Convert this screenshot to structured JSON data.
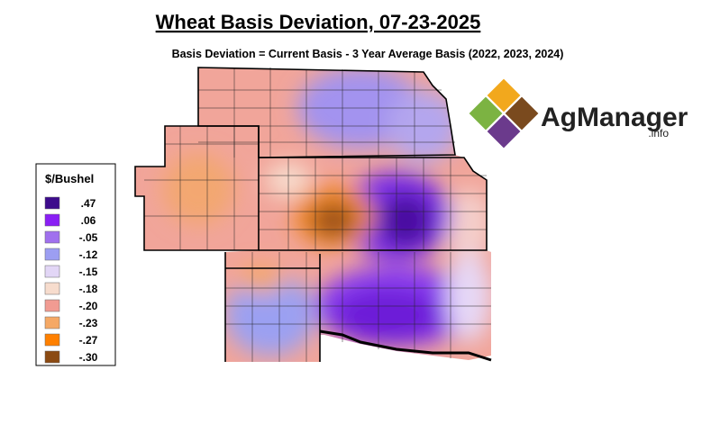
{
  "header": {
    "title": "Wheat Basis Deviation, 07-23-2025",
    "subtitle": "Basis Deviation = Current Basis - 3 Year Average Basis (2022, 2023, 2024)"
  },
  "legend": {
    "title": "$/Bushel",
    "items": [
      {
        "label": ".47",
        "color": "#3d0b8c"
      },
      {
        "label": ".06",
        "color": "#8a1ff5"
      },
      {
        "label": "-.05",
        "color": "#a070ee"
      },
      {
        "label": "-.12",
        "color": "#9c9ef2"
      },
      {
        "label": "-.15",
        "color": "#e2d6f6"
      },
      {
        "label": "-.18",
        "color": "#f7dccd"
      },
      {
        "label": "-.20",
        "color": "#f19b92"
      },
      {
        "label": "-.23",
        "color": "#f5a865"
      },
      {
        "label": "-.27",
        "color": "#ff8000"
      },
      {
        "label": "-.30",
        "color": "#8b4a12"
      }
    ]
  },
  "logo": {
    "name": "AgManager",
    "suffix": ".info"
  }
}
